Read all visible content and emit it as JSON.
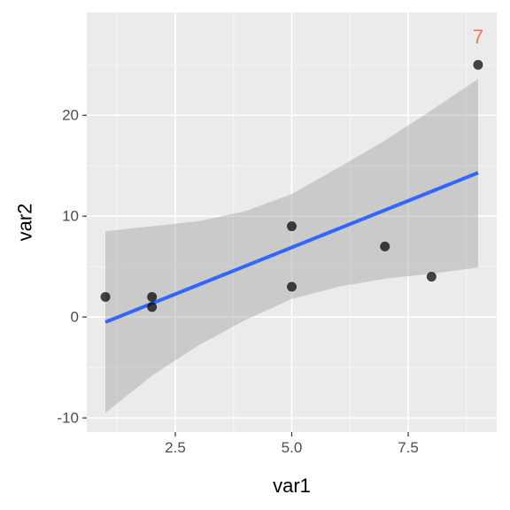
{
  "chart_data": {
    "type": "scatter",
    "xlabel": "var1",
    "ylabel": "var2",
    "xlim": [
      0.6,
      9.4
    ],
    "ylim": [
      -11.4,
      30.2
    ],
    "x_ticks": [
      2.5,
      5.0,
      7.5
    ],
    "x_tick_labels": [
      "2.5",
      "5.0",
      "7.5"
    ],
    "y_ticks": [
      -10,
      0,
      10,
      20
    ],
    "y_tick_labels": [
      "-10",
      "0",
      "10",
      "20"
    ],
    "grid": true,
    "points": [
      {
        "x": 1,
        "y": 2
      },
      {
        "x": 2,
        "y": 2
      },
      {
        "x": 2,
        "y": 1
      },
      {
        "x": 5,
        "y": 9
      },
      {
        "x": 5,
        "y": 3
      },
      {
        "x": 7,
        "y": 7
      },
      {
        "x": 8,
        "y": 4
      },
      {
        "x": 9,
        "y": 25
      }
    ],
    "fit_line": {
      "x": [
        1,
        9
      ],
      "y": [
        -0.5,
        14.3
      ],
      "color": "#3366ff"
    },
    "confidence_band": {
      "x": [
        1,
        2,
        3,
        4,
        5,
        6,
        7,
        8,
        9
      ],
      "upper": [
        8.5,
        9.0,
        9.5,
        10.5,
        12.2,
        14.8,
        17.5,
        20.5,
        23.6
      ],
      "lower": [
        -9.5,
        -5.8,
        -2.8,
        -0.3,
        1.8,
        3.0,
        3.8,
        4.3,
        4.9
      ],
      "color": "#999999"
    },
    "annotations": [
      {
        "text": "7",
        "x": 9,
        "y": 27.8,
        "color": "#f8764d"
      }
    ],
    "colors": {
      "panel_background": "#ebebeb",
      "grid_major": "#ffffff",
      "point": "#000000"
    }
  }
}
